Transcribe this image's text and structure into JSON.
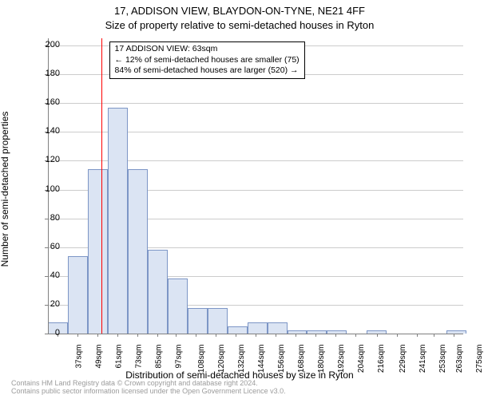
{
  "title_line1": "17, ADDISON VIEW, BLAYDON-ON-TYNE, NE21 4FF",
  "title_line2": "Size of property relative to semi-detached houses in Ryton",
  "ylabel": "Number of semi-detached properties",
  "xlabel": "Distribution of semi-detached houses by size in Ryton",
  "footer_line1": "Contains HM Land Registry data © Crown copyright and database right 2024.",
  "footer_line2": "Contains public sector information licensed under the Open Government Licence v3.0.",
  "info_box": {
    "line1": "17 ADDISON VIEW: 63sqm",
    "line2": "← 12% of semi-detached houses are smaller (75)",
    "line3": "84% of semi-detached houses are larger (520) →"
  },
  "chart": {
    "type": "histogram",
    "background_color": "#ffffff",
    "grid_color": "#cccccc",
    "axis_color": "#808080",
    "bar_fill": "#dbe4f3",
    "bar_stroke": "#7d96c6",
    "marker_color": "#ff0000",
    "marker_x": 63,
    "title_fontsize": 13,
    "label_fontsize": 12,
    "tick_fontsize": 11,
    "x_tick_fontsize": 10,
    "footer_fontsize": 9,
    "footer_color": "#9b9b9b",
    "ylim": [
      0,
      205
    ],
    "y_ticks": [
      0,
      20,
      40,
      60,
      80,
      100,
      120,
      140,
      160,
      180,
      200
    ],
    "x_ticks": [
      37,
      49,
      61,
      73,
      85,
      97,
      108,
      120,
      132,
      144,
      156,
      168,
      180,
      192,
      204,
      216,
      229,
      241,
      253,
      263,
      275
    ],
    "x_tick_suffix": "sqm",
    "x_range": [
      31,
      281
    ],
    "bar_width_data": 12,
    "bars": [
      {
        "x": 31,
        "y": 8
      },
      {
        "x": 43,
        "y": 54
      },
      {
        "x": 55,
        "y": 114
      },
      {
        "x": 67,
        "y": 157
      },
      {
        "x": 79,
        "y": 114
      },
      {
        "x": 91,
        "y": 58
      },
      {
        "x": 103,
        "y": 38
      },
      {
        "x": 115,
        "y": 18
      },
      {
        "x": 127,
        "y": 18
      },
      {
        "x": 139,
        "y": 5
      },
      {
        "x": 151,
        "y": 8
      },
      {
        "x": 163,
        "y": 8
      },
      {
        "x": 175,
        "y": 2
      },
      {
        "x": 187,
        "y": 2
      },
      {
        "x": 199,
        "y": 2
      },
      {
        "x": 211,
        "y": 0
      },
      {
        "x": 223,
        "y": 2
      },
      {
        "x": 235,
        "y": 0
      },
      {
        "x": 247,
        "y": 0
      },
      {
        "x": 259,
        "y": 0
      },
      {
        "x": 271,
        "y": 2
      }
    ]
  }
}
